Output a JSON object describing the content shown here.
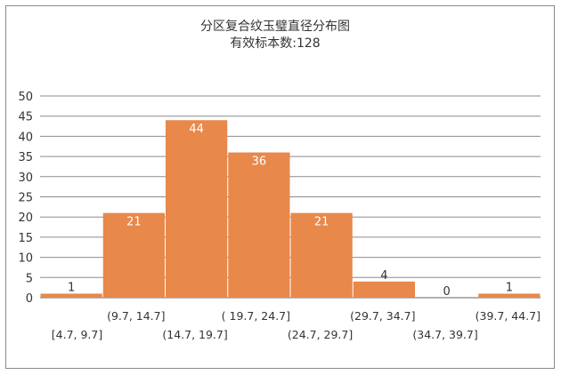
{
  "chart_data": {
    "type": "bar",
    "title": "分区复合纹玉璧直径分布图",
    "subtitle": "有效标本数:128",
    "categories": [
      "[4.7, 9.7]",
      "(9.7, 14.7]",
      "(14.7, 19.7]",
      "( 19.7, 24.7]",
      "(24.7, 29.7]",
      "(29.7, 34.7]",
      "(34.7, 39.7]",
      "(39.7, 44.7]"
    ],
    "values": [
      1,
      21,
      44,
      36,
      21,
      4,
      0,
      1
    ],
    "ylim": [
      0,
      50
    ],
    "yticks": [
      0,
      5,
      10,
      15,
      20,
      25,
      30,
      35,
      40,
      45,
      50
    ],
    "grid": true,
    "bar_color": "#E8884B"
  }
}
